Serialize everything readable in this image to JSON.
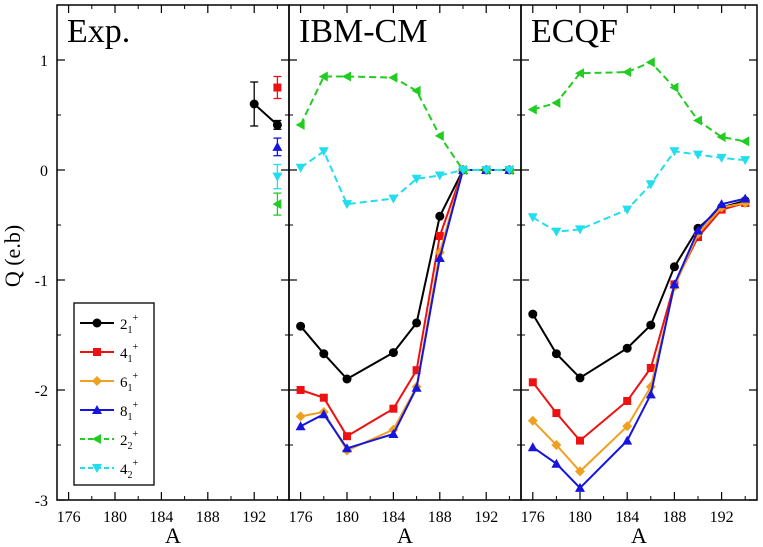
{
  "chart_data": {
    "type": "line",
    "ylabel": "Q (e.b)",
    "xlabel": "A",
    "ylim": [
      -3,
      1.5
    ],
    "xlim": [
      175,
      195
    ],
    "xticks": [
      176,
      180,
      184,
      188,
      192
    ],
    "yticks": [
      -3,
      -2,
      -1,
      0,
      1
    ],
    "ytick_labels": [
      "-3",
      "-2",
      "-1",
      "0",
      "1"
    ],
    "legend_placement": "bottom-left of first panel",
    "legend": [
      {
        "key": "2_1",
        "base": "2",
        "sub": "1",
        "sup": "+",
        "color": "#000000",
        "marker": "circle",
        "dash": false
      },
      {
        "key": "4_1",
        "base": "4",
        "sub": "1",
        "sup": "+",
        "color": "#ee1111",
        "marker": "square",
        "dash": false
      },
      {
        "key": "6_1",
        "base": "6",
        "sub": "1",
        "sup": "+",
        "color": "#f0a020",
        "marker": "diamond",
        "dash": false
      },
      {
        "key": "8_1",
        "base": "8",
        "sub": "1",
        "sup": "+",
        "color": "#1515dd",
        "marker": "triangle-up",
        "dash": false
      },
      {
        "key": "2_2",
        "base": "2",
        "sub": "2",
        "sup": "+",
        "color": "#22cc22",
        "marker": "triangle-left",
        "dash": true
      },
      {
        "key": "4_2",
        "base": "4",
        "sub": "2",
        "sup": "+",
        "color": "#22ddee",
        "marker": "triangle-down",
        "dash": true
      }
    ],
    "panels": [
      {
        "title": "Exp.",
        "series": [
          {
            "key": "2_1",
            "points": [
              [
                192,
                0.6
              ],
              [
                194,
                0.41
              ]
            ],
            "errors": [
              0.2,
              0.04
            ]
          },
          {
            "key": "4_1",
            "points": [
              [
                194,
                0.75
              ]
            ],
            "errors": [
              0.1
            ]
          },
          {
            "key": "8_1",
            "points": [
              [
                194,
                0.21
              ]
            ],
            "errors": [
              0.08
            ]
          },
          {
            "key": "4_2",
            "points": [
              [
                194,
                -0.06
              ]
            ],
            "errors": [
              0.11
            ]
          },
          {
            "key": "2_2",
            "points": [
              [
                194,
                -0.31
              ]
            ],
            "errors": [
              0.1
            ]
          }
        ]
      },
      {
        "title": "IBM-CM",
        "series": [
          {
            "key": "2_1",
            "points": [
              [
                176,
                -1.42
              ],
              [
                178,
                -1.67
              ],
              [
                180,
                -1.9
              ],
              [
                184,
                -1.66
              ],
              [
                186,
                -1.39
              ],
              [
                188,
                -0.42
              ],
              [
                190,
                0.0
              ],
              [
                192,
                0.0
              ],
              [
                194,
                0.0
              ]
            ]
          },
          {
            "key": "4_1",
            "points": [
              [
                176,
                -2.0
              ],
              [
                178,
                -2.07
              ],
              [
                180,
                -2.42
              ],
              [
                184,
                -2.17
              ],
              [
                186,
                -1.82
              ],
              [
                188,
                -0.6
              ],
              [
                190,
                0.0
              ],
              [
                192,
                0.0
              ],
              [
                194,
                0.0
              ]
            ]
          },
          {
            "key": "6_1",
            "points": [
              [
                176,
                -2.24
              ],
              [
                178,
                -2.2
              ],
              [
                180,
                -2.55
              ],
              [
                184,
                -2.36
              ],
              [
                186,
                -1.97
              ],
              [
                188,
                -0.75
              ],
              [
                190,
                0.0
              ],
              [
                192,
                0.0
              ],
              [
                194,
                0.0
              ]
            ]
          },
          {
            "key": "8_1",
            "points": [
              [
                176,
                -2.33
              ],
              [
                178,
                -2.22
              ],
              [
                180,
                -2.53
              ],
              [
                184,
                -2.4
              ],
              [
                186,
                -1.98
              ],
              [
                188,
                -0.8
              ],
              [
                190,
                0.0
              ],
              [
                192,
                0.0
              ],
              [
                194,
                0.0
              ]
            ]
          },
          {
            "key": "2_2",
            "points": [
              [
                176,
                0.41
              ],
              [
                178,
                0.85
              ],
              [
                180,
                0.85
              ],
              [
                184,
                0.84
              ],
              [
                186,
                0.72
              ],
              [
                188,
                0.31
              ],
              [
                190,
                0.0
              ],
              [
                192,
                0.0
              ],
              [
                194,
                0.0
              ]
            ]
          },
          {
            "key": "4_2",
            "points": [
              [
                176,
                0.02
              ],
              [
                178,
                0.17
              ],
              [
                180,
                -0.31
              ],
              [
                184,
                -0.26
              ],
              [
                186,
                -0.08
              ],
              [
                188,
                -0.05
              ],
              [
                190,
                0.0
              ],
              [
                192,
                0.0
              ],
              [
                194,
                0.0
              ]
            ]
          }
        ]
      },
      {
        "title": "ECQF",
        "series": [
          {
            "key": "2_1",
            "points": [
              [
                176,
                -1.31
              ],
              [
                178,
                -1.67
              ],
              [
                180,
                -1.89
              ],
              [
                184,
                -1.62
              ],
              [
                186,
                -1.41
              ],
              [
                188,
                -0.88
              ],
              [
                190,
                -0.53
              ],
              [
                192,
                -0.34
              ],
              [
                194,
                -0.28
              ]
            ]
          },
          {
            "key": "4_1",
            "points": [
              [
                176,
                -1.93
              ],
              [
                178,
                -2.21
              ],
              [
                180,
                -2.46
              ],
              [
                184,
                -2.1
              ],
              [
                186,
                -1.8
              ],
              [
                188,
                -1.04
              ],
              [
                190,
                -0.61
              ],
              [
                192,
                -0.36
              ],
              [
                194,
                -0.3
              ]
            ]
          },
          {
            "key": "6_1",
            "points": [
              [
                176,
                -2.28
              ],
              [
                178,
                -2.5
              ],
              [
                180,
                -2.74
              ],
              [
                184,
                -2.33
              ],
              [
                186,
                -1.97
              ],
              [
                188,
                -1.06
              ],
              [
                190,
                -0.58
              ],
              [
                192,
                -0.34
              ],
              [
                194,
                -0.3
              ]
            ]
          },
          {
            "key": "8_1",
            "points": [
              [
                176,
                -2.52
              ],
              [
                178,
                -2.67
              ],
              [
                180,
                -2.89
              ],
              [
                184,
                -2.46
              ],
              [
                186,
                -2.04
              ],
              [
                188,
                -1.04
              ],
              [
                190,
                -0.55
              ],
              [
                192,
                -0.31
              ],
              [
                194,
                -0.26
              ]
            ]
          },
          {
            "key": "2_2",
            "points": [
              [
                176,
                0.55
              ],
              [
                178,
                0.61
              ],
              [
                180,
                0.88
              ],
              [
                184,
                0.89
              ],
              [
                186,
                0.98
              ],
              [
                188,
                0.75
              ],
              [
                190,
                0.45
              ],
              [
                192,
                0.3
              ],
              [
                194,
                0.26
              ]
            ]
          },
          {
            "key": "4_2",
            "points": [
              [
                176,
                -0.43
              ],
              [
                178,
                -0.56
              ],
              [
                180,
                -0.54
              ],
              [
                184,
                -0.36
              ],
              [
                186,
                -0.13
              ],
              [
                188,
                0.17
              ],
              [
                190,
                0.14
              ],
              [
                192,
                0.11
              ],
              [
                194,
                0.09
              ]
            ]
          }
        ]
      }
    ]
  }
}
